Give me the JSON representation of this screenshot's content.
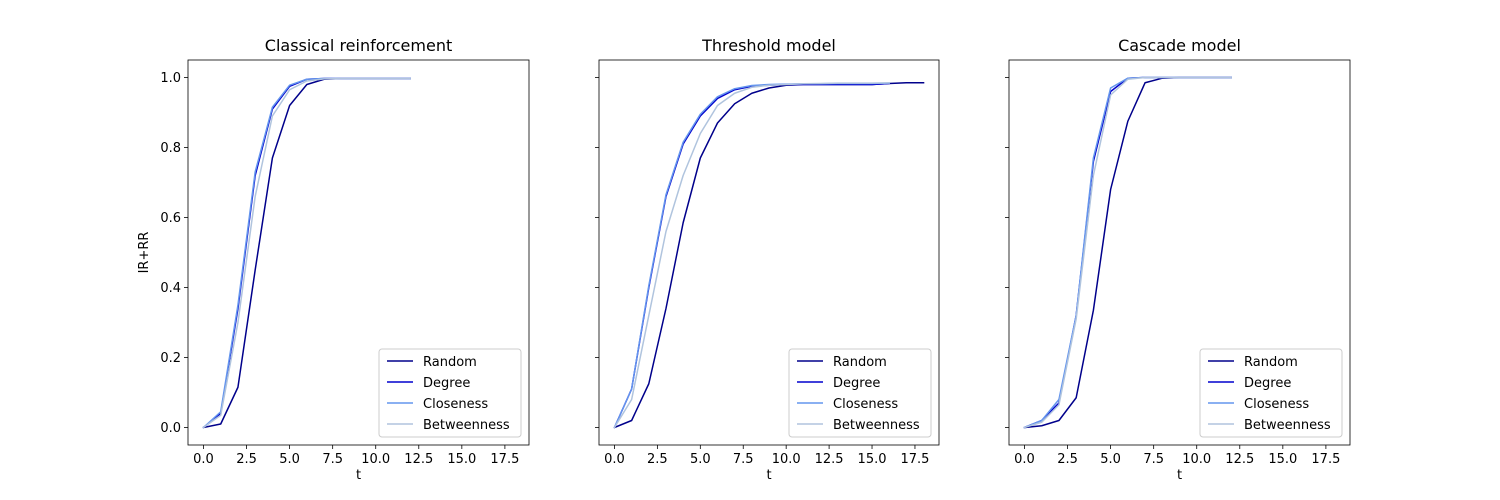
{
  "figure": {
    "background": "#ffffff"
  },
  "series_colors": {
    "Random": "#00008b",
    "Degree": "#0000cd",
    "Closeness": "#6495ed",
    "Betweenness": "#b0c4de"
  },
  "chart_data": [
    {
      "type": "line",
      "title": "Classical reinforcement",
      "xlabel": "t",
      "ylabel": "IR+RR",
      "xlim": [
        -0.9,
        18.9
      ],
      "ylim": [
        -0.05,
        1.05
      ],
      "xticks": [
        0.0,
        2.5,
        5.0,
        7.5,
        10.0,
        12.5,
        15.0,
        17.5
      ],
      "xtick_labels": [
        "0.0",
        "2.5",
        "5.0",
        "7.5",
        "10.0",
        "12.5",
        "15.0",
        "17.5"
      ],
      "yticks": [
        0.0,
        0.2,
        0.4,
        0.6,
        0.8,
        1.0
      ],
      "ytick_labels": [
        "0.0",
        "0.2",
        "0.4",
        "0.6",
        "0.8",
        "1.0"
      ],
      "show_ytick_labels": true,
      "grid": false,
      "legend_position": "lower-right",
      "series": [
        {
          "name": "Random",
          "x": [
            0,
            1,
            2,
            3,
            4,
            5,
            6,
            7,
            8,
            9,
            10,
            11,
            12
          ],
          "y": [
            0.0,
            0.01,
            0.115,
            0.45,
            0.77,
            0.92,
            0.98,
            0.995,
            0.997,
            0.997,
            0.997,
            0.997,
            0.997
          ]
        },
        {
          "name": "Degree",
          "x": [
            0,
            1,
            2,
            3,
            4,
            5,
            6,
            7,
            8,
            9,
            10,
            11,
            12
          ],
          "y": [
            0.0,
            0.04,
            0.34,
            0.72,
            0.91,
            0.975,
            0.995,
            0.997,
            0.997,
            0.997,
            0.997,
            0.997,
            0.997
          ]
        },
        {
          "name": "Closeness",
          "x": [
            0,
            1,
            2,
            3,
            4,
            5,
            6,
            7,
            8,
            9,
            10,
            11,
            12
          ],
          "y": [
            0.0,
            0.045,
            0.35,
            0.73,
            0.915,
            0.978,
            0.995,
            0.997,
            0.997,
            0.997,
            0.997,
            0.997,
            0.997
          ]
        },
        {
          "name": "Betweenness",
          "x": [
            0,
            1,
            2,
            3,
            4,
            5,
            6,
            7,
            8,
            9,
            10,
            11,
            12
          ],
          "y": [
            0.0,
            0.035,
            0.3,
            0.66,
            0.89,
            0.965,
            0.99,
            0.996,
            0.997,
            0.997,
            0.997,
            0.997,
            0.997
          ]
        }
      ]
    },
    {
      "type": "line",
      "title": "Threshold model",
      "xlabel": "t",
      "ylabel": "",
      "xlim": [
        -0.9,
        18.9
      ],
      "ylim": [
        -0.05,
        1.05
      ],
      "xticks": [
        0.0,
        2.5,
        5.0,
        7.5,
        10.0,
        12.5,
        15.0,
        17.5
      ],
      "xtick_labels": [
        "0.0",
        "2.5",
        "5.0",
        "7.5",
        "10.0",
        "12.5",
        "15.0",
        "17.5"
      ],
      "yticks": [
        0.0,
        0.2,
        0.4,
        0.6,
        0.8,
        1.0
      ],
      "ytick_labels": [
        "",
        "",
        "",
        "",
        "",
        ""
      ],
      "show_ytick_labels": false,
      "grid": false,
      "legend_position": "lower-right",
      "series": [
        {
          "name": "Random",
          "x": [
            0,
            1,
            2,
            3,
            4,
            5,
            6,
            7,
            8,
            9,
            10,
            11,
            12,
            13,
            14,
            15,
            16,
            17,
            18
          ],
          "y": [
            0.0,
            0.02,
            0.125,
            0.34,
            0.585,
            0.77,
            0.87,
            0.925,
            0.955,
            0.97,
            0.978,
            0.98,
            0.98,
            0.98,
            0.98,
            0.98,
            0.983,
            0.985,
            0.985
          ]
        },
        {
          "name": "Degree",
          "x": [
            0,
            1,
            2,
            3,
            4,
            5,
            6,
            7,
            8,
            9,
            10,
            11,
            12,
            13,
            14,
            15,
            16
          ],
          "y": [
            0.0,
            0.11,
            0.4,
            0.66,
            0.81,
            0.89,
            0.94,
            0.965,
            0.975,
            0.978,
            0.98,
            0.98,
            0.98,
            0.98,
            0.98,
            0.98,
            0.983
          ]
        },
        {
          "name": "Closeness",
          "x": [
            0,
            1,
            2,
            3,
            4,
            5,
            6,
            7,
            8,
            9,
            10,
            11,
            12,
            13,
            14,
            15,
            16
          ],
          "y": [
            0.0,
            0.11,
            0.405,
            0.665,
            0.815,
            0.895,
            0.945,
            0.968,
            0.977,
            0.98,
            0.981,
            0.982,
            0.982,
            0.983,
            0.983,
            0.983,
            0.984
          ]
        },
        {
          "name": "Betweenness",
          "x": [
            0,
            1,
            2,
            3,
            4,
            5,
            6,
            7,
            8,
            9,
            10,
            11,
            12,
            13,
            14,
            15,
            16
          ],
          "y": [
            0.0,
            0.08,
            0.32,
            0.56,
            0.72,
            0.84,
            0.92,
            0.955,
            0.972,
            0.978,
            0.98,
            0.982,
            0.983,
            0.984,
            0.984,
            0.984,
            0.985
          ]
        }
      ]
    },
    {
      "type": "line",
      "title": "Cascade model",
      "xlabel": "t",
      "ylabel": "",
      "xlim": [
        -0.9,
        18.9
      ],
      "ylim": [
        -0.05,
        1.05
      ],
      "xticks": [
        0.0,
        2.5,
        5.0,
        7.5,
        10.0,
        12.5,
        15.0,
        17.5
      ],
      "xtick_labels": [
        "0.0",
        "2.5",
        "5.0",
        "7.5",
        "10.0",
        "12.5",
        "15.0",
        "17.5"
      ],
      "yticks": [
        0.0,
        0.2,
        0.4,
        0.6,
        0.8,
        1.0
      ],
      "ytick_labels": [
        "",
        "",
        "",
        "",
        "",
        ""
      ],
      "show_ytick_labels": false,
      "grid": false,
      "legend_position": "lower-right",
      "series": [
        {
          "name": "Random",
          "x": [
            0,
            1,
            2,
            3,
            4,
            5,
            6,
            7,
            8,
            9,
            10,
            11,
            12
          ],
          "y": [
            0.0,
            0.005,
            0.02,
            0.085,
            0.335,
            0.68,
            0.875,
            0.985,
            0.998,
            1.0,
            1.0,
            1.0,
            1.0
          ]
        },
        {
          "name": "Degree",
          "x": [
            0,
            1,
            2,
            3,
            4,
            5,
            6,
            7,
            8,
            9,
            10,
            11,
            12
          ],
          "y": [
            0.0,
            0.02,
            0.07,
            0.32,
            0.76,
            0.96,
            0.998,
            1.0,
            1.0,
            1.0,
            1.0,
            1.0,
            1.0
          ]
        },
        {
          "name": "Closeness",
          "x": [
            0,
            1,
            2,
            3,
            4,
            5,
            6,
            7,
            8,
            9,
            10,
            11,
            12
          ],
          "y": [
            0.0,
            0.02,
            0.08,
            0.32,
            0.77,
            0.97,
            0.998,
            1.0,
            1.0,
            1.0,
            1.0,
            1.0,
            1.0
          ]
        },
        {
          "name": "Betweenness",
          "x": [
            0,
            1,
            2,
            3,
            4,
            5,
            6,
            7,
            8,
            9,
            10,
            11,
            12
          ],
          "y": [
            0.0,
            0.015,
            0.065,
            0.31,
            0.72,
            0.95,
            0.995,
            1.0,
            1.0,
            1.0,
            1.0,
            1.0,
            1.0
          ]
        }
      ]
    }
  ]
}
